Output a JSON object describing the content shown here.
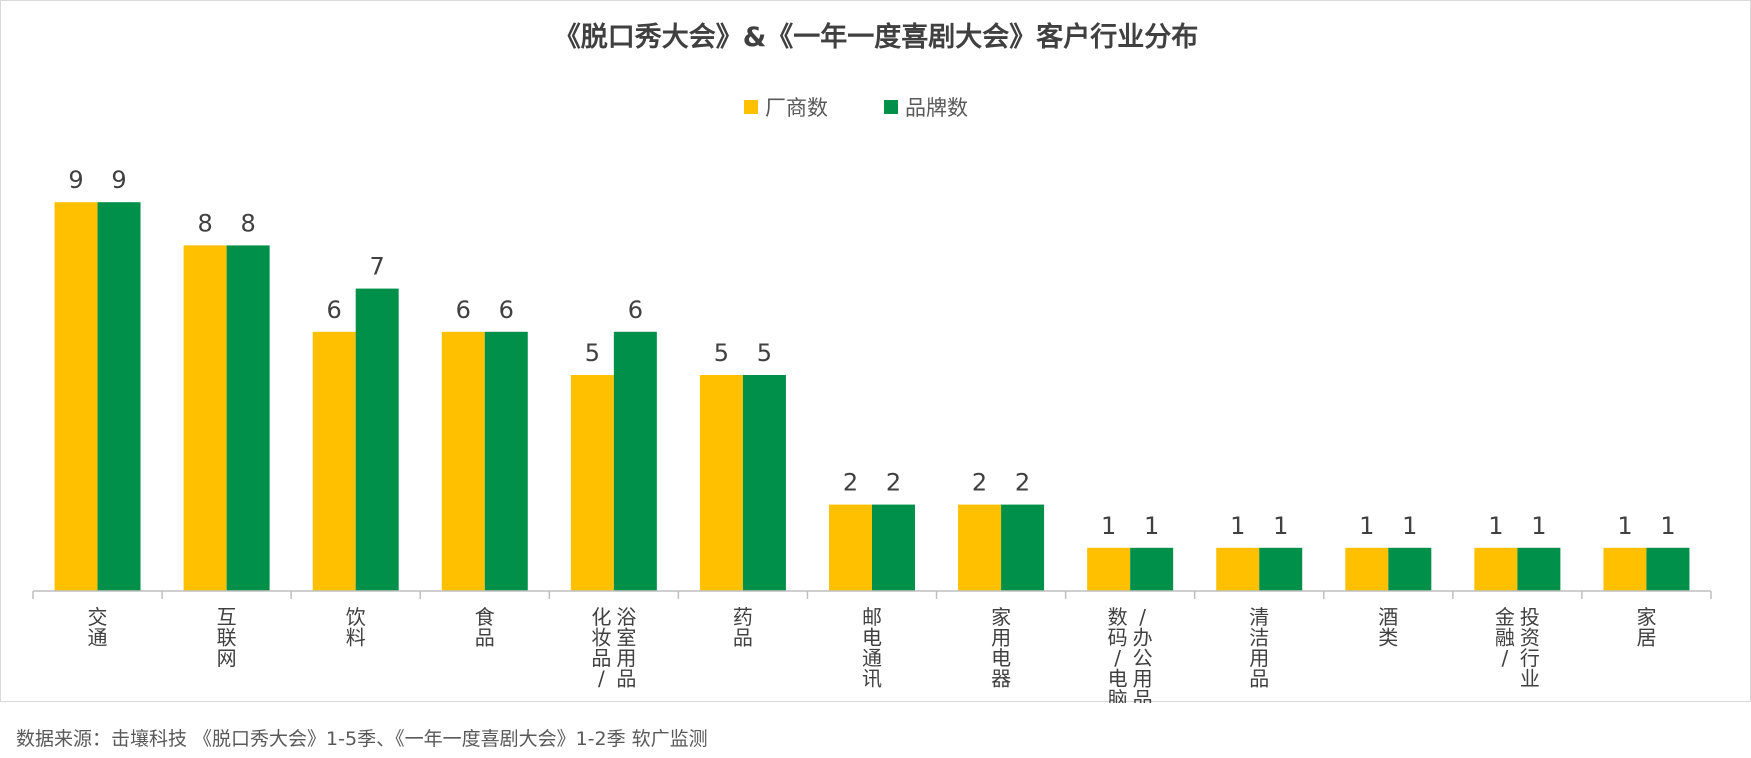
{
  "chart_data": {
    "type": "bar",
    "title": "《脱口秀大会》&《一年一度喜剧大会》客户行业分布",
    "categories": [
      "交通",
      "互联网",
      "饮料",
      "食品",
      "浴室用品/化妆品",
      "药品",
      "邮电通讯",
      "家用电器",
      "办公用品/数码电脑",
      "清洁用品",
      "酒类",
      "投资行业/金融",
      "家居"
    ],
    "category_label_columns": [
      [
        "交通"
      ],
      [
        "互联网"
      ],
      [
        "饮料"
      ],
      [
        "食品"
      ],
      [
        "浴室用品",
        "化妆品/"
      ],
      [
        "药品"
      ],
      [
        "邮电通讯"
      ],
      [
        "家用电器"
      ],
      [
        "/办公用品",
        "数码/电脑"
      ],
      [
        "清洁用品"
      ],
      [
        "酒类"
      ],
      [
        "投资行业",
        "金融/"
      ],
      [
        "家居"
      ]
    ],
    "series": [
      {
        "name": "厂商数",
        "color": "#FFC000",
        "values": [
          9,
          8,
          6,
          6,
          5,
          5,
          2,
          2,
          1,
          1,
          1,
          1,
          1
        ]
      },
      {
        "name": "品牌数",
        "color": "#00904A",
        "values": [
          9,
          8,
          7,
          6,
          6,
          5,
          2,
          2,
          1,
          1,
          1,
          1,
          1
        ]
      }
    ],
    "ylim": [
      0,
      9
    ],
    "grid": false,
    "legend_position": "top-center",
    "data_labels": true
  },
  "source_note": "数据来源：击壤科技 《脱口秀大会》1-5季、《一年一度喜剧大会》1-2季 软广监测"
}
